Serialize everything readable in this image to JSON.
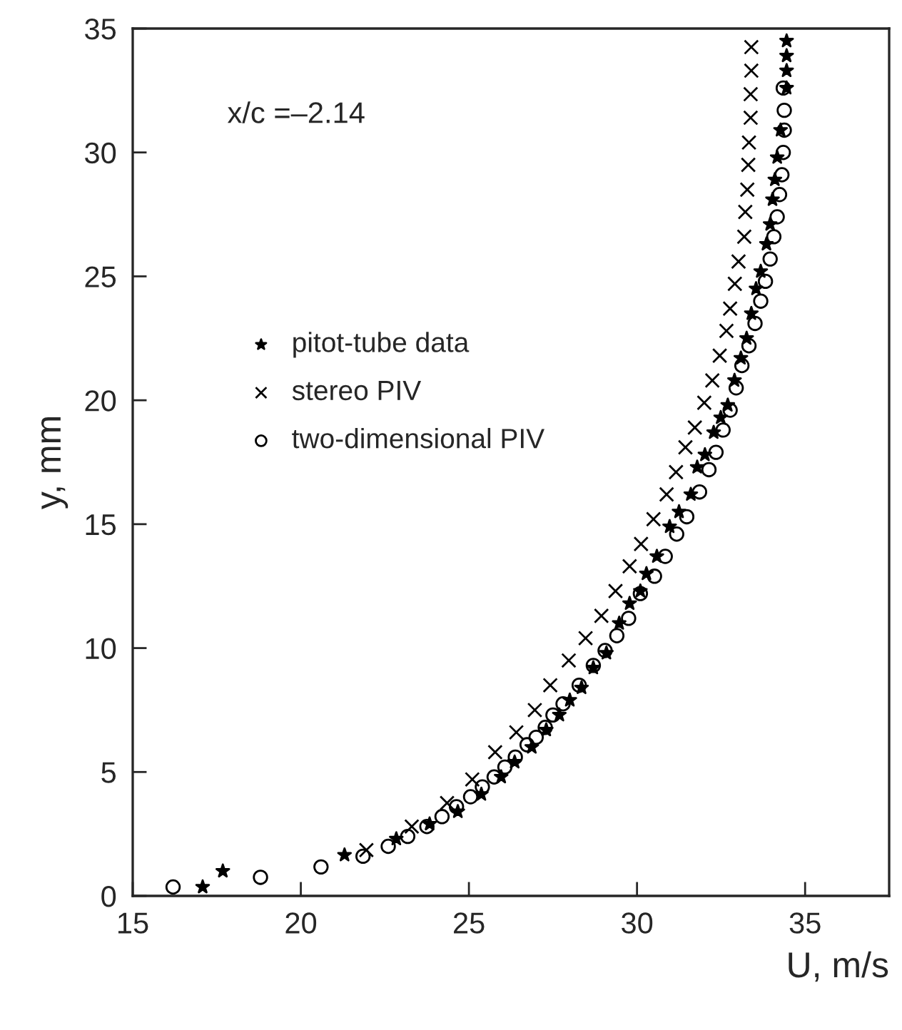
{
  "chart_data": {
    "type": "scatter",
    "xlabel": "U, m/s",
    "ylabel": "y, mm",
    "annotations": [
      "x/c =–2.14"
    ],
    "xlim": [
      15,
      37.5
    ],
    "xticks": [
      15,
      20,
      25,
      30,
      35
    ],
    "ylim": [
      0,
      35
    ],
    "yticks": [
      0,
      5,
      10,
      15,
      20,
      25,
      30,
      35
    ],
    "grid": false,
    "legend": "left",
    "series": [
      {
        "name": "pitot-tube data",
        "color": "#000000",
        "marker": "star",
        "x": [
          17.08,
          17.68,
          21.3,
          22.84,
          23.83,
          24.67,
          25.37,
          25.96,
          26.36,
          26.87,
          27.3,
          27.69,
          28.0,
          28.35,
          28.7,
          29.09,
          29.47,
          29.78,
          30.1,
          30.28,
          30.59,
          30.97,
          31.25,
          31.6,
          31.79,
          32.02,
          32.28,
          32.49,
          32.7,
          32.9,
          33.09,
          33.26,
          33.4,
          33.54,
          33.68,
          33.85,
          33.96,
          34.03,
          34.1,
          34.17,
          34.27,
          34.45,
          34.45,
          34.45,
          34.45
        ],
        "values": [
          0.36,
          1.0,
          1.65,
          2.3,
          2.9,
          3.4,
          4.1,
          4.8,
          5.4,
          6.0,
          6.7,
          7.3,
          7.9,
          8.4,
          9.2,
          9.8,
          11.0,
          11.8,
          12.3,
          13.0,
          13.7,
          14.9,
          15.5,
          16.2,
          17.3,
          17.8,
          18.7,
          19.3,
          19.8,
          20.8,
          21.7,
          22.5,
          23.5,
          24.5,
          25.2,
          26.3,
          27.1,
          28.1,
          28.9,
          29.8,
          30.9,
          32.6,
          33.3,
          33.9,
          34.5
        ]
      },
      {
        "name": "stereo PIV",
        "color": "#000000",
        "marker": "cross",
        "x": [
          21.95,
          23.3,
          24.35,
          25.1,
          25.78,
          26.41,
          26.96,
          27.42,
          27.97,
          28.47,
          28.94,
          29.36,
          29.78,
          30.12,
          30.49,
          30.88,
          31.16,
          31.44,
          31.72,
          32.0,
          32.24,
          32.46,
          32.66,
          32.77,
          32.91,
          33.02,
          33.19,
          33.22,
          33.28,
          33.31,
          33.33,
          33.38,
          33.38,
          33.4,
          33.4
        ],
        "values": [
          1.85,
          2.8,
          3.75,
          4.7,
          5.8,
          6.6,
          7.5,
          8.5,
          9.5,
          10.4,
          11.3,
          12.3,
          13.3,
          14.2,
          15.2,
          16.2,
          17.1,
          18.1,
          18.9,
          19.9,
          20.8,
          21.8,
          22.8,
          23.7,
          24.7,
          25.6,
          26.6,
          27.6,
          28.5,
          29.5,
          30.4,
          31.4,
          32.35,
          33.3,
          34.25
        ]
      },
      {
        "name": "two-dimensional PIV",
        "color": "#000000",
        "marker": "circle",
        "x": [
          16.2,
          18.8,
          20.6,
          21.85,
          22.6,
          23.18,
          23.75,
          24.2,
          24.63,
          25.05,
          25.4,
          25.75,
          26.07,
          26.38,
          26.73,
          27.0,
          27.27,
          27.5,
          27.8,
          28.28,
          28.7,
          29.05,
          29.4,
          29.75,
          30.1,
          30.52,
          30.84,
          31.18,
          31.48,
          31.86,
          32.14,
          32.35,
          32.56,
          32.77,
          32.95,
          33.12,
          33.33,
          33.51,
          33.68,
          33.82,
          33.96,
          34.07,
          34.17,
          34.24,
          34.31,
          34.35,
          34.38,
          34.38,
          34.35
        ],
        "values": [
          0.36,
          0.75,
          1.17,
          1.6,
          2.0,
          2.4,
          2.8,
          3.2,
          3.6,
          4.0,
          4.4,
          4.8,
          5.2,
          5.6,
          6.1,
          6.4,
          6.8,
          7.3,
          7.75,
          8.5,
          9.3,
          9.9,
          10.5,
          11.2,
          12.2,
          12.9,
          13.7,
          14.6,
          15.3,
          16.3,
          17.2,
          17.9,
          18.8,
          19.6,
          20.5,
          21.4,
          22.2,
          23.1,
          24.0,
          24.8,
          25.7,
          26.6,
          27.4,
          28.3,
          29.1,
          30.0,
          30.9,
          31.7,
          32.6
        ]
      }
    ]
  }
}
